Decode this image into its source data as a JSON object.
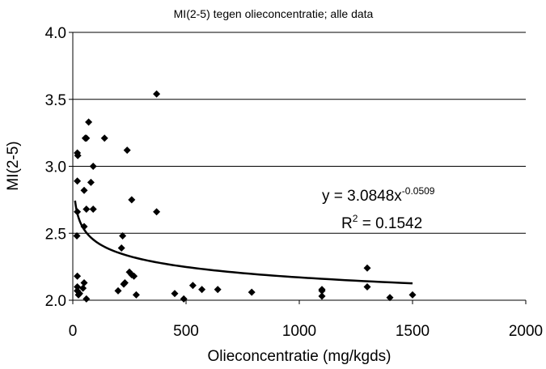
{
  "chart_data": {
    "type": "scatter",
    "title": "MI(2-5) tegen olieconcentratie; alle data",
    "xlabel": "Olieconcentratie (mg/kgds)",
    "ylabel": "MI(2-5)",
    "xlim": [
      0,
      2000
    ],
    "ylim": [
      2.0,
      4.0
    ],
    "x_ticks": [
      "0",
      "500",
      "1000",
      "1500",
      "2000"
    ],
    "y_ticks": [
      "2.0",
      "2.5",
      "3.0",
      "3.5",
      "4.0"
    ],
    "x_tick_values": [
      0,
      500,
      1000,
      1500,
      2000
    ],
    "y_tick_values": [
      2.0,
      2.5,
      3.0,
      3.5,
      4.0
    ],
    "grid": "horizontal",
    "series": [
      {
        "marker": "diamond",
        "color": "#000000",
        "points": [
          [
            20,
            3.1
          ],
          [
            22,
            3.08
          ],
          [
            20,
            2.89
          ],
          [
            20,
            2.66
          ],
          [
            18,
            2.48
          ],
          [
            20,
            2.18
          ],
          [
            20,
            2.1
          ],
          [
            20,
            2.07
          ],
          [
            25,
            2.04
          ],
          [
            30,
            2.05
          ],
          [
            45,
            2.09
          ],
          [
            55,
            3.21
          ],
          [
            60,
            3.21
          ],
          [
            50,
            2.82
          ],
          [
            60,
            2.68
          ],
          [
            50,
            2.55
          ],
          [
            50,
            2.13
          ],
          [
            60,
            2.01
          ],
          [
            70,
            3.33
          ],
          [
            90,
            3.0
          ],
          [
            80,
            2.88
          ],
          [
            90,
            2.68
          ],
          [
            140,
            3.21
          ],
          [
            200,
            2.07
          ],
          [
            215,
            2.39
          ],
          [
            220,
            2.48
          ],
          [
            225,
            2.12
          ],
          [
            230,
            2.13
          ],
          [
            240,
            3.12
          ],
          [
            250,
            2.21
          ],
          [
            260,
            2.75
          ],
          [
            260,
            2.19
          ],
          [
            270,
            2.18
          ],
          [
            280,
            2.04
          ],
          [
            370,
            3.54
          ],
          [
            370,
            2.66
          ],
          [
            450,
            2.05
          ],
          [
            490,
            2.01
          ],
          [
            530,
            2.11
          ],
          [
            570,
            2.08
          ],
          [
            640,
            2.08
          ],
          [
            790,
            2.06
          ],
          [
            1100,
            2.08
          ],
          [
            1100,
            2.07
          ],
          [
            1100,
            2.03
          ],
          [
            1300,
            2.24
          ],
          [
            1300,
            2.1
          ],
          [
            1400,
            2.02
          ],
          [
            1500,
            2.04
          ]
        ]
      }
    ],
    "trendline": {
      "type": "power",
      "a": 3.0848,
      "b": -0.0509,
      "x_range": [
        10,
        1500
      ],
      "equation_base": "y = 3.0848x",
      "equation_exp": "-0.0509",
      "r2_base": "R",
      "r2_exp": "2",
      "r2_value": " = 0.1542"
    }
  }
}
